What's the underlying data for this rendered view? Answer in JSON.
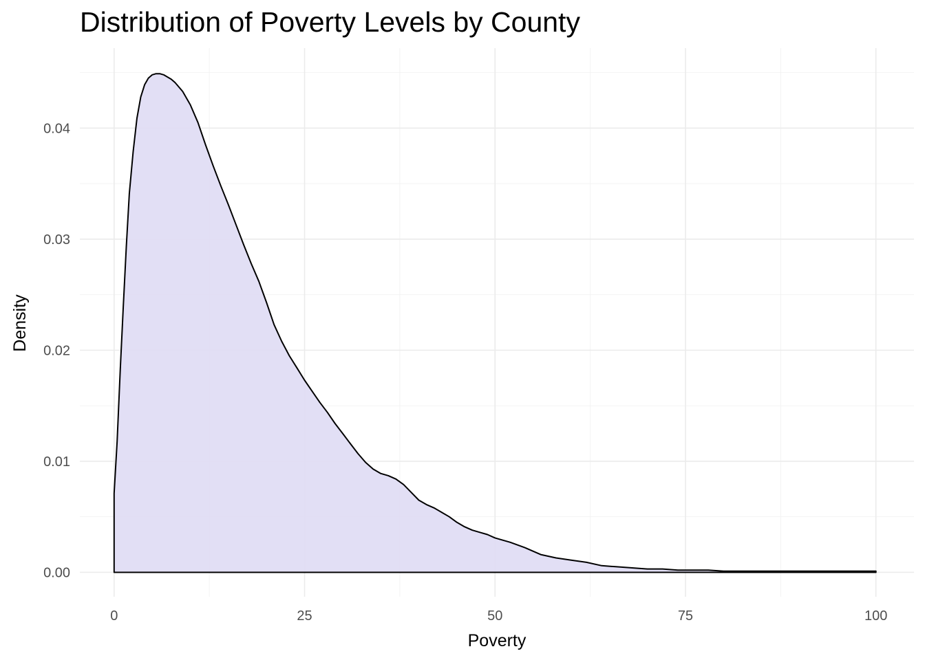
{
  "chart_data": {
    "type": "area",
    "title": "Distribution of Poverty Levels by County",
    "xlabel": "Poverty",
    "ylabel": "Density",
    "xlim": [
      -4.5,
      105
    ],
    "ylim": [
      -0.0022,
      0.0472
    ],
    "x_ticks": [
      0,
      25,
      50,
      75,
      100
    ],
    "x_tick_labels": [
      "0",
      "25",
      "50",
      "75",
      "100"
    ],
    "y_ticks": [
      0,
      0.01,
      0.02,
      0.03,
      0.04
    ],
    "y_tick_labels": [
      "0.00",
      "0.01",
      "0.02",
      "0.03",
      "0.04"
    ],
    "grid": true,
    "legend": "none",
    "fill_color": "#e0dcf4",
    "line_color": "#000000",
    "series": [
      {
        "name": "density",
        "x": [
          0,
          0.4,
          0.8,
          1.2,
          1.6,
          2.0,
          2.5,
          3.0,
          3.5,
          4.0,
          4.5,
          5.0,
          5.5,
          6.0,
          6.5,
          7.0,
          7.5,
          8.0,
          9.0,
          10.0,
          11.0,
          12.0,
          13.0,
          14.0,
          15.0,
          16.0,
          17.0,
          18.0,
          19.0,
          20.0,
          21.0,
          22.0,
          23.0,
          24.0,
          25.0,
          26.0,
          27.0,
          28.0,
          29.0,
          30.0,
          31.0,
          32.0,
          33.0,
          34.0,
          35.0,
          36.0,
          37.0,
          38.0,
          39.0,
          40.0,
          41.0,
          42.0,
          43.0,
          44.0,
          45.0,
          46.0,
          47.0,
          48.0,
          49.0,
          50.0,
          52.0,
          54.0,
          56.0,
          58.0,
          60.0,
          62.0,
          64.0,
          66.0,
          68.0,
          70.0,
          72.0,
          74.0,
          76.0,
          78.0,
          80.0,
          82.0,
          84.0,
          86.0,
          88.0,
          90.0,
          92.0,
          94.0,
          96.0,
          98.0,
          100.0
        ],
        "y": [
          0.0071,
          0.0118,
          0.0182,
          0.0239,
          0.0293,
          0.0341,
          0.0379,
          0.0409,
          0.0428,
          0.0439,
          0.0445,
          0.0448,
          0.0449,
          0.0449,
          0.0448,
          0.0446,
          0.0444,
          0.0441,
          0.0433,
          0.0421,
          0.0405,
          0.0385,
          0.0366,
          0.0348,
          0.0331,
          0.0313,
          0.0295,
          0.0278,
          0.0262,
          0.0243,
          0.0223,
          0.0208,
          0.0195,
          0.0184,
          0.0173,
          0.0163,
          0.0153,
          0.0144,
          0.0134,
          0.0125,
          0.0116,
          0.0107,
          0.0099,
          0.0093,
          0.0089,
          0.0087,
          0.0084,
          0.0079,
          0.0072,
          0.0065,
          0.0061,
          0.0058,
          0.0054,
          0.005,
          0.0045,
          0.0041,
          0.0038,
          0.0036,
          0.0034,
          0.0031,
          0.0027,
          0.0022,
          0.0016,
          0.0013,
          0.0011,
          0.0009,
          0.0006,
          0.0005,
          0.0004,
          0.0003,
          0.0003,
          0.0002,
          0.0002,
          0.0002,
          0.0001,
          0.0001,
          0.0001,
          0.0001,
          0.0001,
          0.0001,
          0.0001,
          0.0001,
          0.0001,
          0.0001,
          0.0001
        ]
      }
    ]
  }
}
